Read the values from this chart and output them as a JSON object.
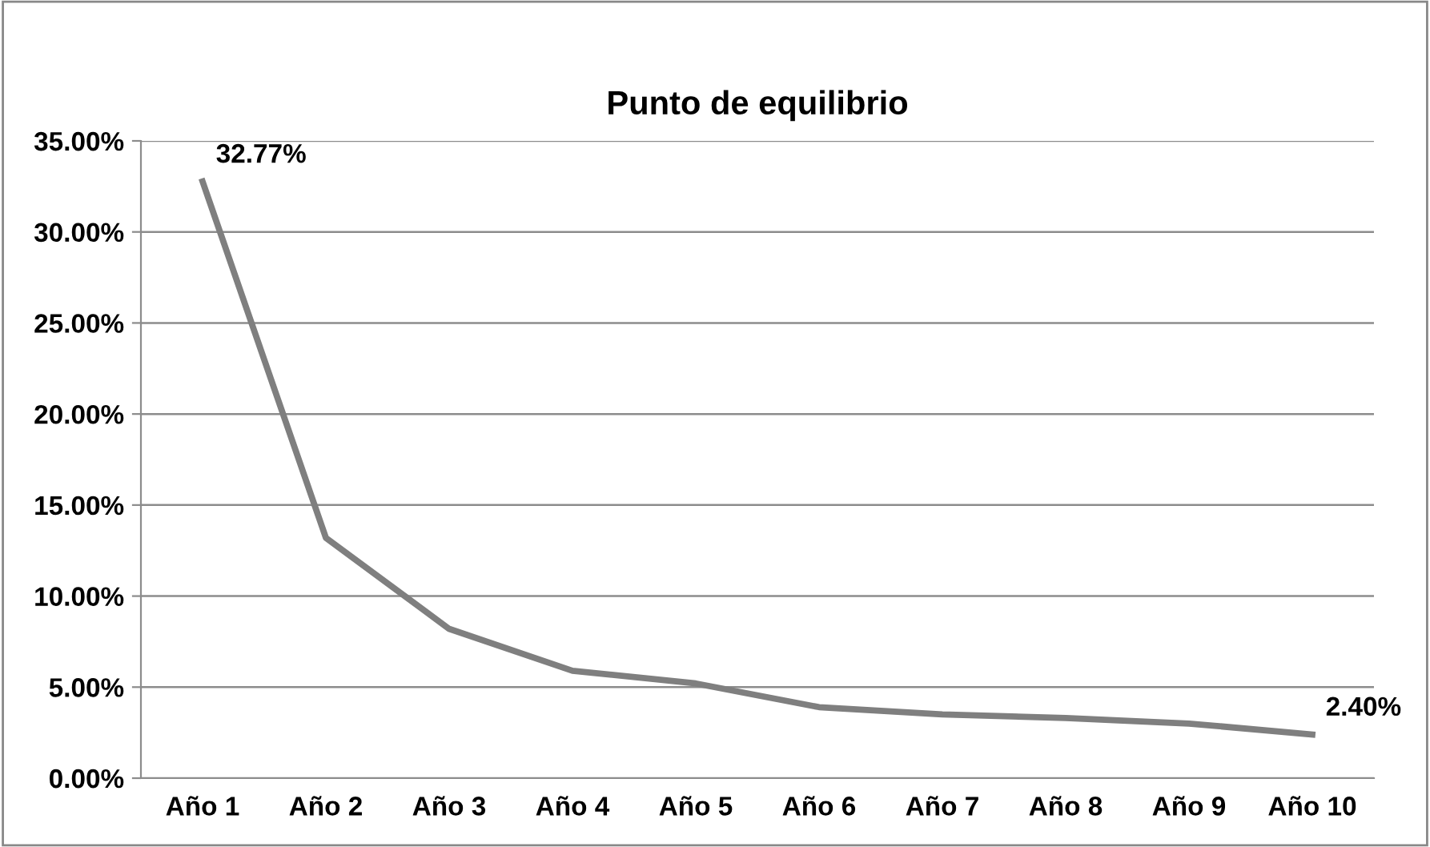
{
  "chart_data": {
    "type": "line",
    "title": "Punto de equilibrio",
    "categories": [
      "Año 1",
      "Año 2",
      "Año 3",
      "Año 4",
      "Año 5",
      "Año 6",
      "Año 7",
      "Año 8",
      "Año 9",
      "Año 10"
    ],
    "series": [
      {
        "color": "#7f7f7f",
        "values": [
          32.77,
          13.2,
          8.2,
          5.9,
          5.2,
          3.9,
          3.5,
          3.3,
          3.0,
          2.4
        ],
        "value_labels": [
          "32.77%",
          null,
          null,
          null,
          null,
          null,
          null,
          null,
          null,
          "2.40%"
        ]
      }
    ],
    "ylim": [
      0,
      35
    ],
    "yticks": [
      {
        "value": 0,
        "label": "0.00%"
      },
      {
        "value": 5,
        "label": "5.00%"
      },
      {
        "value": 10,
        "label": "10.00%"
      },
      {
        "value": 15,
        "label": "15.00%"
      },
      {
        "value": 20,
        "label": "20.00%"
      },
      {
        "value": 25,
        "label": "25.00%"
      },
      {
        "value": 30,
        "label": "30.00%"
      },
      {
        "value": 35,
        "label": "35.00%"
      }
    ],
    "grid": "y",
    "marker": "none",
    "line_style": "solid"
  }
}
